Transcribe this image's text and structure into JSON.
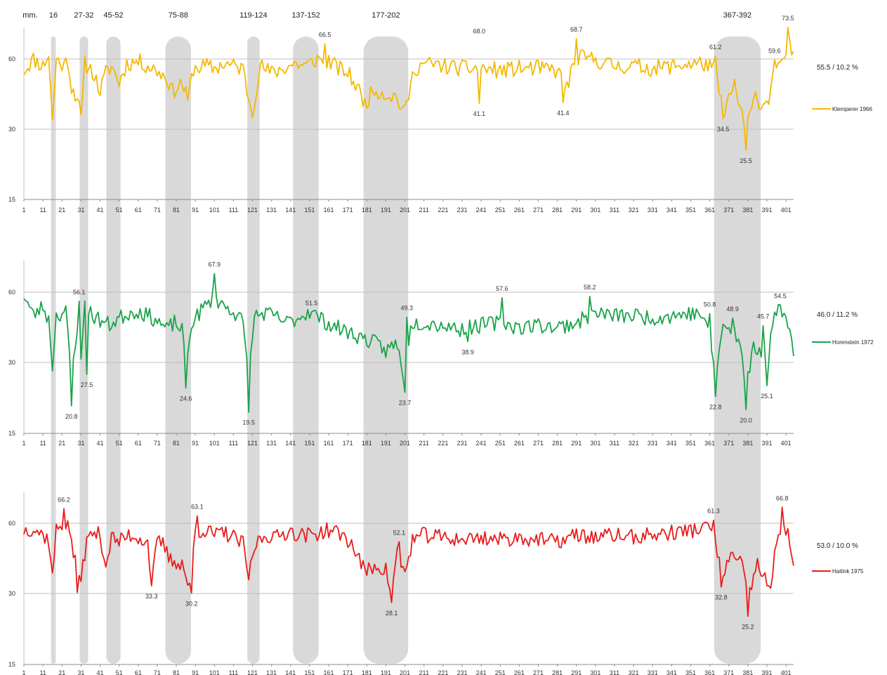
{
  "chart_data": [
    {
      "type": "line",
      "name": "Klemperer 1966",
      "color": "#f5b800",
      "stat": "55.5 / 10.2 %",
      "ylim": [
        15,
        60
      ],
      "yticks": [
        "15",
        "30",
        "60"
      ],
      "sections_label": "mm.",
      "sections": [
        {
          "label": "16",
          "start": 16,
          "end": 17
        },
        {
          "label": "27-32",
          "start": 31,
          "end": 34
        },
        {
          "label": "45-52",
          "start": 45,
          "end": 51
        },
        {
          "label": "75-88",
          "start": 76,
          "end": 88
        },
        {
          "label": "119-124",
          "start": 119,
          "end": 124
        },
        {
          "label": "137-152",
          "start": 143,
          "end": 155
        },
        {
          "label": "177-202",
          "start": 180,
          "end": 202
        },
        {
          "label": "367-392",
          "start": 364,
          "end": 387
        }
      ],
      "xtick_labels": [
        "1",
        "11",
        "21",
        "31",
        "41",
        "51",
        "61",
        "71",
        "81",
        "91",
        "101",
        "111",
        "121",
        "131",
        "141",
        "151",
        "161",
        "171",
        "181",
        "191",
        "201",
        "211",
        "221",
        "231",
        "241",
        "251",
        "261",
        "271",
        "281",
        "291",
        "301",
        "311",
        "321",
        "331",
        "341",
        "351",
        "361",
        "371",
        "381",
        "391",
        "401"
      ],
      "x_range": [
        1,
        405
      ],
      "annotations": [
        {
          "x": 159,
          "y": 66.5,
          "label": "66.5",
          "pos": "above"
        },
        {
          "x": 240,
          "y": 68.0,
          "label": "68.0",
          "pos": "above"
        },
        {
          "x": 291,
          "y": 68.7,
          "label": "68.7",
          "pos": "above"
        },
        {
          "x": 364,
          "y": 61.2,
          "label": "61.2",
          "pos": "above"
        },
        {
          "x": 395,
          "y": 59.6,
          "label": "59.6",
          "pos": "above"
        },
        {
          "x": 402,
          "y": 73.5,
          "label": "73.5",
          "pos": "above"
        },
        {
          "x": 240,
          "y": 41.1,
          "label": "41.1",
          "pos": "below"
        },
        {
          "x": 284,
          "y": 41.4,
          "label": "41.4",
          "pos": "below"
        },
        {
          "x": 368,
          "y": 34.5,
          "label": "34.5",
          "pos": "below"
        },
        {
          "x": 380,
          "y": 25.5,
          "label": "25.5",
          "pos": "below"
        }
      ],
      "profile": [
        [
          1,
          55
        ],
        [
          6,
          60
        ],
        [
          11,
          57
        ],
        [
          14,
          62
        ],
        [
          16,
          33
        ],
        [
          18,
          60
        ],
        [
          22,
          57
        ],
        [
          24,
          60
        ],
        [
          26,
          48
        ],
        [
          29,
          44
        ],
        [
          31,
          34
        ],
        [
          33,
          58
        ],
        [
          37,
          55
        ],
        [
          41,
          46
        ],
        [
          44,
          54
        ],
        [
          47,
          57
        ],
        [
          51,
          50
        ],
        [
          55,
          58
        ],
        [
          61,
          59
        ],
        [
          66,
          57
        ],
        [
          71,
          55
        ],
        [
          76,
          52
        ],
        [
          79,
          46
        ],
        [
          84,
          50
        ],
        [
          87,
          42
        ],
        [
          90,
          56
        ],
        [
          96,
          57
        ],
        [
          101,
          56
        ],
        [
          106,
          58
        ],
        [
          111,
          57
        ],
        [
          116,
          56
        ],
        [
          119,
          43
        ],
        [
          121,
          38
        ],
        [
          125,
          57
        ],
        [
          131,
          54
        ],
        [
          137,
          56
        ],
        [
          143,
          58
        ],
        [
          149,
          57
        ],
        [
          155,
          60
        ],
        [
          161,
          59
        ],
        [
          166,
          56
        ],
        [
          171,
          54
        ],
        [
          176,
          48
        ],
        [
          180,
          41
        ],
        [
          185,
          47
        ],
        [
          191,
          45
        ],
        [
          196,
          44
        ],
        [
          201,
          37
        ],
        [
          206,
          56
        ],
        [
          211,
          58
        ],
        [
          221,
          57
        ],
        [
          231,
          56
        ],
        [
          241,
          56
        ],
        [
          251,
          55
        ],
        [
          261,
          56
        ],
        [
          271,
          56
        ],
        [
          281,
          55
        ],
        [
          286,
          48
        ],
        [
          291,
          61
        ],
        [
          296,
          60
        ],
        [
          301,
          60
        ],
        [
          306,
          58
        ],
        [
          311,
          57
        ],
        [
          321,
          57
        ],
        [
          331,
          56
        ],
        [
          341,
          57
        ],
        [
          351,
          58
        ],
        [
          358,
          58
        ],
        [
          364,
          55
        ],
        [
          368,
          38
        ],
        [
          374,
          48
        ],
        [
          380,
          30
        ],
        [
          385,
          44
        ],
        [
          389,
          40
        ],
        [
          392,
          44
        ],
        [
          396,
          58
        ],
        [
          400,
          57
        ],
        [
          402,
          68
        ],
        [
          405,
          60
        ]
      ],
      "noise_seed": 11,
      "noise_amp": 3.6
    },
    {
      "type": "line",
      "name": "Horenstein 1972",
      "color": "#1aa34a",
      "stat": "46.0 / 11.2 %",
      "ylim": [
        15,
        60
      ],
      "yticks": [
        "15",
        "30",
        "60"
      ],
      "xtick_labels": [
        "1",
        "11",
        "21",
        "31",
        "41",
        "51",
        "61",
        "71",
        "81",
        "91",
        "101",
        "111",
        "121",
        "131",
        "141",
        "151",
        "161",
        "171",
        "181",
        "191",
        "201",
        "211",
        "221",
        "231",
        "241",
        "251",
        "261",
        "271",
        "281",
        "291",
        "301",
        "311",
        "321",
        "331",
        "341",
        "351",
        "361",
        "371",
        "381",
        "391",
        "401"
      ],
      "x_range": [
        1,
        405
      ],
      "annotations": [
        {
          "x": 30,
          "y": 56.1,
          "label": "56.1",
          "pos": "above"
        },
        {
          "x": 101,
          "y": 67.9,
          "label": "67.9",
          "pos": "above"
        },
        {
          "x": 152,
          "y": 51.5,
          "label": "51.5",
          "pos": "above"
        },
        {
          "x": 202,
          "y": 49.3,
          "label": "49.3",
          "pos": "above"
        },
        {
          "x": 252,
          "y": 57.6,
          "label": "57.6",
          "pos": "above"
        },
        {
          "x": 298,
          "y": 58.2,
          "label": "58.2",
          "pos": "above"
        },
        {
          "x": 361,
          "y": 50.8,
          "label": "50.8",
          "pos": "above"
        },
        {
          "x": 373,
          "y": 48.9,
          "label": "48.9",
          "pos": "above"
        },
        {
          "x": 389,
          "y": 45.7,
          "label": "45.7",
          "pos": "above"
        },
        {
          "x": 398,
          "y": 54.5,
          "label": "54.5",
          "pos": "above"
        },
        {
          "x": 26,
          "y": 20.8,
          "label": "20.8",
          "pos": "below"
        },
        {
          "x": 34,
          "y": 27.5,
          "label": "27.5",
          "pos": "below"
        },
        {
          "x": 86,
          "y": 24.6,
          "label": "24.6",
          "pos": "below"
        },
        {
          "x": 119,
          "y": 19.5,
          "label": "19.5",
          "pos": "below"
        },
        {
          "x": 201,
          "y": 23.7,
          "label": "23.7",
          "pos": "below"
        },
        {
          "x": 234,
          "y": 38.9,
          "label": "38.9",
          "pos": "below"
        },
        {
          "x": 364,
          "y": 22.8,
          "label": "22.8",
          "pos": "below"
        },
        {
          "x": 380,
          "y": 20.0,
          "label": "20.0",
          "pos": "below"
        },
        {
          "x": 391,
          "y": 25.1,
          "label": "25.1",
          "pos": "below"
        }
      ],
      "profile": [
        [
          1,
          59
        ],
        [
          6,
          50
        ],
        [
          11,
          54
        ],
        [
          14,
          48
        ],
        [
          16,
          30
        ],
        [
          18,
          50
        ],
        [
          23,
          52
        ],
        [
          26,
          22
        ],
        [
          29,
          46
        ],
        [
          31,
          29
        ],
        [
          33,
          56
        ],
        [
          37,
          50
        ],
        [
          41,
          48
        ],
        [
          46,
          46
        ],
        [
          51,
          49
        ],
        [
          56,
          51
        ],
        [
          61,
          52
        ],
        [
          66,
          50
        ],
        [
          71,
          48
        ],
        [
          76,
          44
        ],
        [
          80,
          47
        ],
        [
          84,
          44
        ],
        [
          86,
          25
        ],
        [
          89,
          47
        ],
        [
          95,
          53
        ],
        [
          101,
          58
        ],
        [
          106,
          54
        ],
        [
          111,
          52
        ],
        [
          116,
          47
        ],
        [
          119,
          22
        ],
        [
          122,
          50
        ],
        [
          128,
          51
        ],
        [
          134,
          49
        ],
        [
          139,
          47
        ],
        [
          145,
          49
        ],
        [
          151,
          52
        ],
        [
          156,
          49
        ],
        [
          162,
          46
        ],
        [
          168,
          44
        ],
        [
          174,
          42
        ],
        [
          180,
          40
        ],
        [
          186,
          38
        ],
        [
          191,
          35
        ],
        [
          196,
          38
        ],
        [
          201,
          27
        ],
        [
          204,
          47
        ],
        [
          211,
          47
        ],
        [
          221,
          46
        ],
        [
          231,
          44
        ],
        [
          241,
          46
        ],
        [
          251,
          47
        ],
        [
          261,
          45
        ],
        [
          271,
          46
        ],
        [
          281,
          45
        ],
        [
          291,
          47
        ],
        [
          301,
          51
        ],
        [
          311,
          50
        ],
        [
          321,
          50
        ],
        [
          331,
          49
        ],
        [
          341,
          50
        ],
        [
          351,
          51
        ],
        [
          358,
          50
        ],
        [
          364,
          26
        ],
        [
          368,
          45
        ],
        [
          374,
          43
        ],
        [
          378,
          33
        ],
        [
          380,
          24
        ],
        [
          384,
          38
        ],
        [
          389,
          33
        ],
        [
          391,
          28
        ],
        [
          395,
          51
        ],
        [
          398,
          55
        ],
        [
          401,
          48
        ],
        [
          403,
          44
        ],
        [
          405,
          30
        ]
      ],
      "noise_seed": 23,
      "noise_amp": 3.4
    },
    {
      "type": "line",
      "name": "Haitink 1975",
      "color": "#e81c1c",
      "stat": "53.0 / 10.0 %",
      "ylim": [
        15,
        60
      ],
      "yticks": [
        "15",
        "30",
        "60"
      ],
      "xtick_labels": [
        "1",
        "11",
        "21",
        "31",
        "41",
        "51",
        "61",
        "71",
        "81",
        "91",
        "101",
        "111",
        "121",
        "131",
        "141",
        "151",
        "161",
        "171",
        "181",
        "191",
        "201",
        "211",
        "221",
        "231",
        "241",
        "251",
        "261",
        "271",
        "281",
        "291",
        "301",
        "311",
        "321",
        "331",
        "341",
        "351",
        "361",
        "371",
        "381",
        "391",
        "401"
      ],
      "x_range": [
        1,
        405
      ],
      "annotations": [
        {
          "x": 22,
          "y": 66.2,
          "label": "66.2",
          "pos": "above"
        },
        {
          "x": 92,
          "y": 63.1,
          "label": "63.1",
          "pos": "above"
        },
        {
          "x": 198,
          "y": 52.1,
          "label": "52.1",
          "pos": "above"
        },
        {
          "x": 363,
          "y": 61.3,
          "label": "61.3",
          "pos": "above"
        },
        {
          "x": 399,
          "y": 66.8,
          "label": "66.8",
          "pos": "above"
        },
        {
          "x": 68,
          "y": 33.3,
          "label": "33.3",
          "pos": "below"
        },
        {
          "x": 89,
          "y": 30.2,
          "label": "30.2",
          "pos": "below"
        },
        {
          "x": 194,
          "y": 28.1,
          "label": "28.1",
          "pos": "below"
        },
        {
          "x": 367,
          "y": 32.8,
          "label": "32.8",
          "pos": "below"
        },
        {
          "x": 381,
          "y": 25.2,
          "label": "25.2",
          "pos": "below"
        }
      ],
      "profile": [
        [
          1,
          57
        ],
        [
          6,
          58
        ],
        [
          11,
          55
        ],
        [
          14,
          53
        ],
        [
          16,
          37
        ],
        [
          18,
          57
        ],
        [
          22,
          61
        ],
        [
          25,
          57
        ],
        [
          28,
          43
        ],
        [
          29,
          31
        ],
        [
          31,
          38
        ],
        [
          34,
          52
        ],
        [
          37,
          56
        ],
        [
          41,
          55
        ],
        [
          44,
          42
        ],
        [
          47,
          54
        ],
        [
          51,
          52
        ],
        [
          56,
          55
        ],
        [
          61,
          54
        ],
        [
          66,
          52
        ],
        [
          68,
          34
        ],
        [
          71,
          52
        ],
        [
          74,
          51
        ],
        [
          78,
          44
        ],
        [
          84,
          43
        ],
        [
          88,
          32
        ],
        [
          91,
          57
        ],
        [
          96,
          57
        ],
        [
          101,
          55
        ],
        [
          106,
          56
        ],
        [
          111,
          54
        ],
        [
          116,
          51
        ],
        [
          119,
          37
        ],
        [
          123,
          52
        ],
        [
          128,
          55
        ],
        [
          134,
          54
        ],
        [
          140,
          57
        ],
        [
          146,
          55
        ],
        [
          151,
          55
        ],
        [
          156,
          56
        ],
        [
          161,
          57
        ],
        [
          166,
          56
        ],
        [
          171,
          53
        ],
        [
          176,
          47
        ],
        [
          180,
          39
        ],
        [
          186,
          42
        ],
        [
          191,
          40
        ],
        [
          194,
          29
        ],
        [
          197,
          48
        ],
        [
          201,
          38
        ],
        [
          205,
          53
        ],
        [
          211,
          55
        ],
        [
          221,
          54
        ],
        [
          231,
          53
        ],
        [
          241,
          54
        ],
        [
          251,
          53
        ],
        [
          261,
          54
        ],
        [
          271,
          53
        ],
        [
          281,
          52
        ],
        [
          291,
          55
        ],
        [
          301,
          54
        ],
        [
          311,
          55
        ],
        [
          321,
          54
        ],
        [
          331,
          55
        ],
        [
          341,
          56
        ],
        [
          351,
          57
        ],
        [
          358,
          58
        ],
        [
          363,
          58
        ],
        [
          367,
          37
        ],
        [
          372,
          46
        ],
        [
          378,
          42
        ],
        [
          381,
          27
        ],
        [
          386,
          43
        ],
        [
          390,
          36
        ],
        [
          393,
          31
        ],
        [
          396,
          52
        ],
        [
          399,
          60
        ],
        [
          402,
          56
        ],
        [
          405,
          42
        ]
      ],
      "noise_seed": 37,
      "noise_amp": 3.4
    }
  ]
}
